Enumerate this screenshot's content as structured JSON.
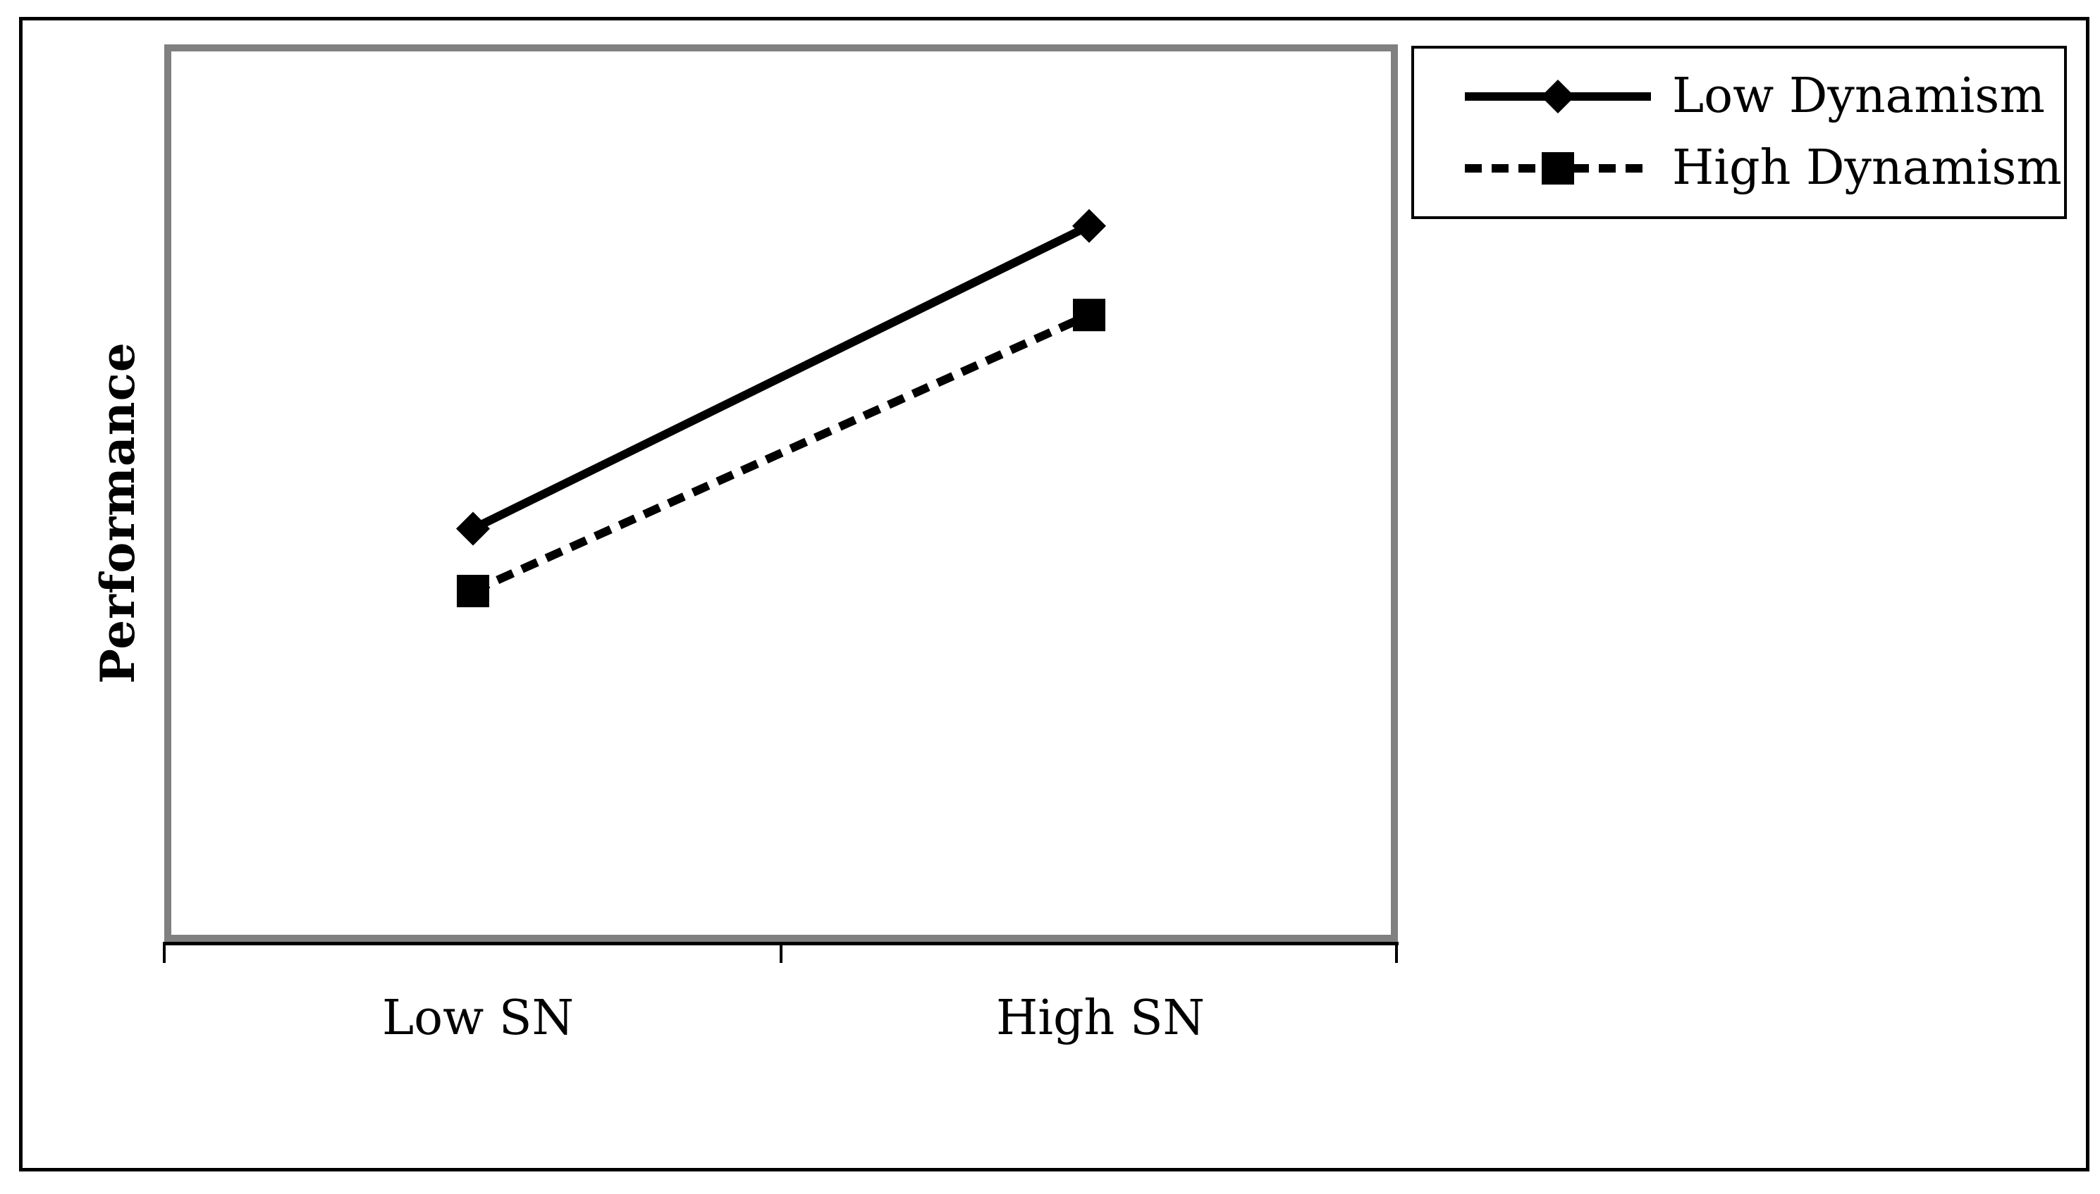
{
  "chart_data": {
    "type": "line",
    "categories": [
      "Low SN",
      "High SN"
    ],
    "series": [
      {
        "name": "Low Dynamism",
        "values": [
          4.6,
          8.0
        ],
        "line_style": "solid",
        "marker": "diamond"
      },
      {
        "name": "High Dynamism",
        "values": [
          3.9,
          7.0
        ],
        "line_style": "dashed",
        "marker": "square"
      }
    ],
    "title": "",
    "xlabel": "",
    "ylabel": "Performance",
    "ylim": [
      0,
      10
    ],
    "grid": false,
    "y_tick_labels_shown": false,
    "legend_position": "outside-top-right"
  },
  "colors": {
    "series": "#000000",
    "plot_frame": "#808080",
    "figure_border": "#000000",
    "background": "#ffffff"
  },
  "style": {
    "line_width": 12,
    "dash_pattern": "24 14",
    "marker_size": 48
  }
}
